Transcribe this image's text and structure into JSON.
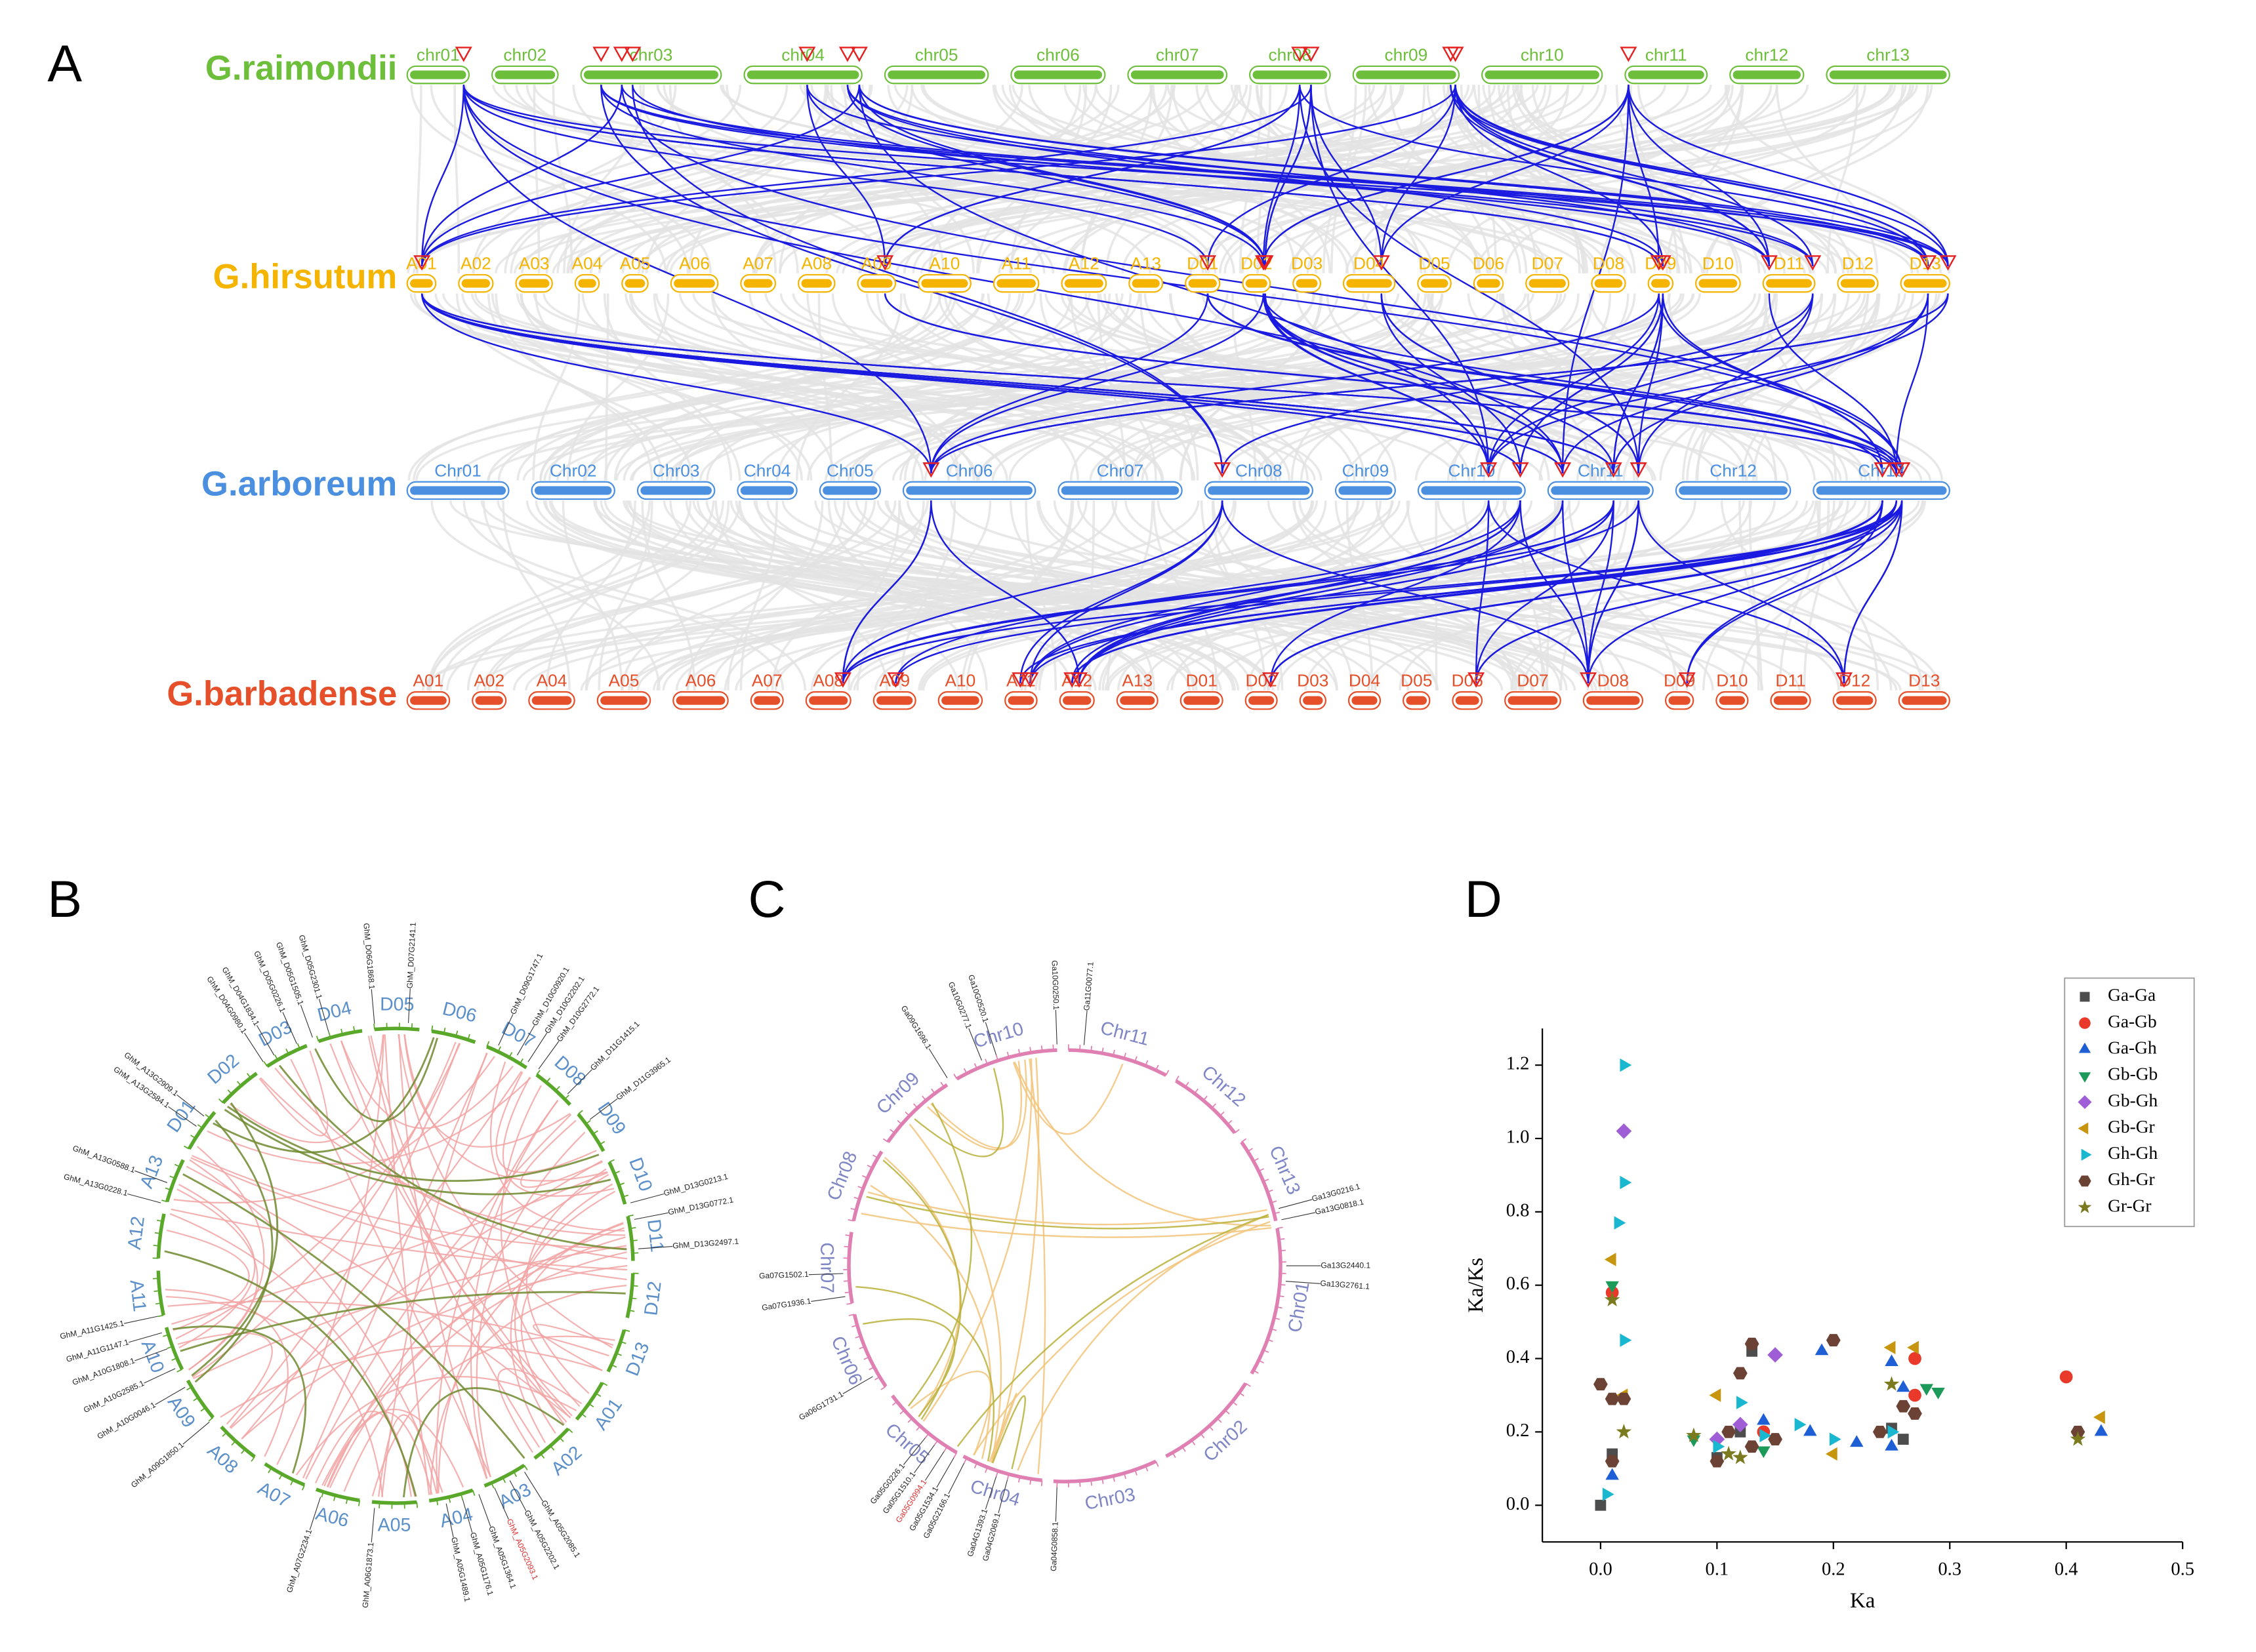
{
  "panel_labels": [
    "A",
    "B",
    "C",
    "D"
  ],
  "synteny": {
    "genomes": [
      {
        "name": "G.raimondii",
        "color": "#6dbf3b",
        "chromosomes": [
          "chr01",
          "chr02",
          "chr03",
          "chr04",
          "chr05",
          "chr06",
          "chr07",
          "chr08",
          "chr09",
          "chr10",
          "chr11",
          "chr12",
          "chr13"
        ]
      },
      {
        "name": "G.hirsutum",
        "color": "#f5b400",
        "chromosomes": [
          "A01",
          "A02",
          "A03",
          "A04",
          "A05",
          "A06",
          "A07",
          "A08",
          "A09",
          "A10",
          "A11",
          "A12",
          "A13",
          "D01",
          "D02",
          "D03",
          "D04",
          "D05",
          "D06",
          "D07",
          "D08",
          "D09",
          "D10",
          "D11",
          "D12",
          "D13"
        ]
      },
      {
        "name": "G.arboreum",
        "color": "#4a8fe0",
        "chromosomes": [
          "Chr01",
          "Chr02",
          "Chr03",
          "Chr04",
          "Chr05",
          "Chr06",
          "Chr07",
          "Chr08",
          "Chr09",
          "Chr10",
          "Chr11",
          "Chr12",
          "Chr13"
        ]
      },
      {
        "name": "G.barbadense",
        "color": "#e5502a",
        "chromosomes": [
          "A01",
          "A02",
          "A04",
          "A05",
          "A06",
          "A07",
          "A08",
          "A09",
          "A10",
          "A11",
          "A12",
          "A13",
          "D01",
          "D02",
          "D03",
          "D04",
          "D05",
          "D06",
          "D07",
          "D08",
          "D09",
          "D10",
          "D11",
          "D12",
          "D13"
        ]
      }
    ]
  },
  "circos_b": {
    "chromosomes": [
      "D01",
      "D02",
      "D03",
      "D04",
      "D05",
      "D06",
      "D07",
      "D08",
      "D09",
      "D10",
      "D11",
      "D12",
      "D13",
      "A01",
      "A02",
      "A03",
      "A04",
      "A05",
      "A06",
      "A07",
      "A08",
      "A09",
      "A10",
      "A11",
      "A12",
      "A13"
    ],
    "genes": [
      {
        "name": "GhM_D04G0980.1"
      },
      {
        "name": "GhM_D04G1834.1"
      },
      {
        "name": "GhM_D05G0226.1"
      },
      {
        "name": "GhM_D05G1505.1"
      },
      {
        "name": "GhM_D05G2301.1"
      },
      {
        "name": "GhM_D06G1868.1"
      },
      {
        "name": "GhM_D07G2141.1"
      },
      {
        "name": "GhM_D09G1747.1"
      },
      {
        "name": "GhM_D10G0920.1"
      },
      {
        "name": "GhM_D10G2202.1"
      },
      {
        "name": "GhM_D10G2772.1"
      },
      {
        "name": "GhM_D11G1415.1"
      },
      {
        "name": "GhM_D11G3965.1"
      },
      {
        "name": "GhM_D13G0213.1"
      },
      {
        "name": "GhM_D13G0772.1"
      },
      {
        "name": "GhM_D13G2497.1"
      },
      {
        "name": "GhM_A05G2085.1"
      },
      {
        "name": "GhM_A05G2202.1"
      },
      {
        "name": "GhM_A05G2093.1",
        "color": "#e03030"
      },
      {
        "name": "GhM_A05G1364.1"
      },
      {
        "name": "GhM_A05G1176.1"
      },
      {
        "name": "GhM_A05G1489.1"
      },
      {
        "name": "GhM_A06G1873.1"
      },
      {
        "name": "GhM_A07G2234.1"
      },
      {
        "name": "GhM_A09G1850.1"
      },
      {
        "name": "GhM_A10G0046.1"
      },
      {
        "name": "GhM_A10G2585.1"
      },
      {
        "name": "GhM_A10G1808.1"
      },
      {
        "name": "GhM_A11G1147.1"
      },
      {
        "name": "GhM_A11G1425.1"
      },
      {
        "name": "GhM_A13G0228.1"
      },
      {
        "name": "GhM_A13G0588.1"
      },
      {
        "name": "GhM_A13G2584.1"
      },
      {
        "name": "GhM_A13G2909.1"
      }
    ]
  },
  "circos_c": {
    "chromosomes": [
      "Chr01",
      "Chr02",
      "Chr03",
      "Chr04",
      "Chr05",
      "Chr06",
      "Chr07",
      "Chr08",
      "Chr09",
      "Chr10",
      "Chr11",
      "Chr12",
      "Chr13"
    ],
    "genes": [
      {
        "name": "Ga09G1696.1"
      },
      {
        "name": "Ga10G0277.1"
      },
      {
        "name": "Ga10G0520.1"
      },
      {
        "name": "Ga10G0250.1"
      },
      {
        "name": "Ga11G0077.1"
      },
      {
        "name": "Ga13G0216.1"
      },
      {
        "name": "Ga13G0818.1"
      },
      {
        "name": "Ga13G2440.1"
      },
      {
        "name": "Ga13G2761.1"
      },
      {
        "name": "Ga07G1936.1"
      },
      {
        "name": "Ga07G1502.1"
      },
      {
        "name": "Ga06G1731.1"
      },
      {
        "name": "Ga05G2166.1"
      },
      {
        "name": "Ga05G1534.1"
      },
      {
        "name": "Ga05G0994.1",
        "color": "#e03030"
      },
      {
        "name": "Ga05G1510.1"
      },
      {
        "name": "Ga05G0226.1"
      },
      {
        "name": "Ga04G2069.1"
      },
      {
        "name": "Ga04G1393.1"
      },
      {
        "name": "Ga04G0858.1"
      }
    ]
  },
  "chart_data": {
    "type": "scatter",
    "x_label": "Ka",
    "y_label": "Ka/Ks",
    "xlim": [
      -0.05,
      0.5
    ],
    "ylim": [
      -0.1,
      1.3
    ],
    "xticks": [
      {
        "value": 0,
        "label": "0.0"
      },
      {
        "value": 0.1,
        "label": "0.1"
      },
      {
        "value": 0.2,
        "label": "0.2"
      },
      {
        "value": 0.3,
        "label": "0.3"
      },
      {
        "value": 0.4,
        "label": "0.4"
      },
      {
        "value": 0.5,
        "label": "0.5"
      }
    ],
    "yticks": [
      {
        "value": 0,
        "label": "0.0"
      },
      {
        "value": 0.2,
        "label": "0.2"
      },
      {
        "value": 0.4,
        "label": "0.4"
      },
      {
        "value": 0.6,
        "label": "0.6"
      },
      {
        "value": 0.8,
        "label": "0.8"
      },
      {
        "value": 1,
        "label": "1.0"
      },
      {
        "value": 1.2,
        "label": "1.2"
      }
    ],
    "legend": "upper right",
    "series": [
      {
        "name": "Ga-Ga",
        "color": "#4d4d4d",
        "marker": "square",
        "x": [
          0.0,
          0.01,
          0.13,
          0.25,
          0.26,
          0.12,
          0.1
        ],
        "y": [
          0.0,
          0.14,
          0.42,
          0.21,
          0.18,
          0.2,
          0.13
        ]
      },
      {
        "name": "Ga-Gb",
        "color": "#e8392b",
        "marker": "circle",
        "x": [
          0.4,
          0.27,
          0.27,
          0.01,
          0.14
        ],
        "y": [
          0.35,
          0.4,
          0.3,
          0.58,
          0.2
        ]
      },
      {
        "name": "Ga-Gh",
        "color": "#1f5fd6",
        "marker": "triangle-up",
        "x": [
          0.19,
          0.25,
          0.25,
          0.43,
          0.18,
          0.26,
          0.14,
          0.01,
          0.22
        ],
        "y": [
          0.42,
          0.39,
          0.16,
          0.2,
          0.2,
          0.32,
          0.23,
          0.08,
          0.17
        ]
      },
      {
        "name": "Gb-Gb",
        "color": "#1c9a5a",
        "marker": "triangle-down",
        "x": [
          0.29,
          0.28,
          0.08,
          0.14,
          0.01
        ],
        "y": [
          0.31,
          0.32,
          0.18,
          0.15,
          0.6
        ]
      },
      {
        "name": "Gb-Gh",
        "color": "#a05ed6",
        "marker": "diamond",
        "x": [
          0.02,
          0.15,
          0.12,
          0.1
        ],
        "y": [
          1.02,
          0.41,
          0.22,
          0.18
        ]
      },
      {
        "name": "Gb-Gr",
        "color": "#c8960e",
        "marker": "triangle-left",
        "x": [
          0.01,
          0.27,
          0.43,
          0.02,
          0.25,
          0.2,
          0.1
        ],
        "y": [
          0.67,
          0.43,
          0.24,
          0.3,
          0.43,
          0.14,
          0.3
        ]
      },
      {
        "name": "Gh-Gh",
        "color": "#1ab8d0",
        "marker": "triangle-right",
        "x": [
          0.02,
          0.02,
          0.015,
          0.02,
          0.17,
          0.12,
          0.25,
          0.2,
          0.005,
          0.1,
          0.14
        ],
        "y": [
          1.2,
          0.88,
          0.77,
          0.45,
          0.22,
          0.28,
          0.2,
          0.18,
          0.03,
          0.16,
          0.19
        ]
      },
      {
        "name": "Gh-Gr",
        "color": "#6b4234",
        "marker": "hexagon",
        "x": [
          0.0,
          0.01,
          0.02,
          0.2,
          0.13,
          0.12,
          0.11,
          0.41,
          0.26,
          0.24,
          0.1,
          0.15,
          0.01,
          0.13,
          0.27
        ],
        "y": [
          0.33,
          0.29,
          0.29,
          0.45,
          0.44,
          0.36,
          0.2,
          0.2,
          0.27,
          0.2,
          0.12,
          0.18,
          0.12,
          0.16,
          0.25
        ]
      },
      {
        "name": "Gr-Gr",
        "color": "#7b7a1f",
        "marker": "star",
        "x": [
          0.01,
          0.02,
          0.41,
          0.08,
          0.12,
          0.25,
          0.11
        ],
        "y": [
          0.56,
          0.2,
          0.18,
          0.19,
          0.13,
          0.33,
          0.14
        ]
      }
    ]
  }
}
